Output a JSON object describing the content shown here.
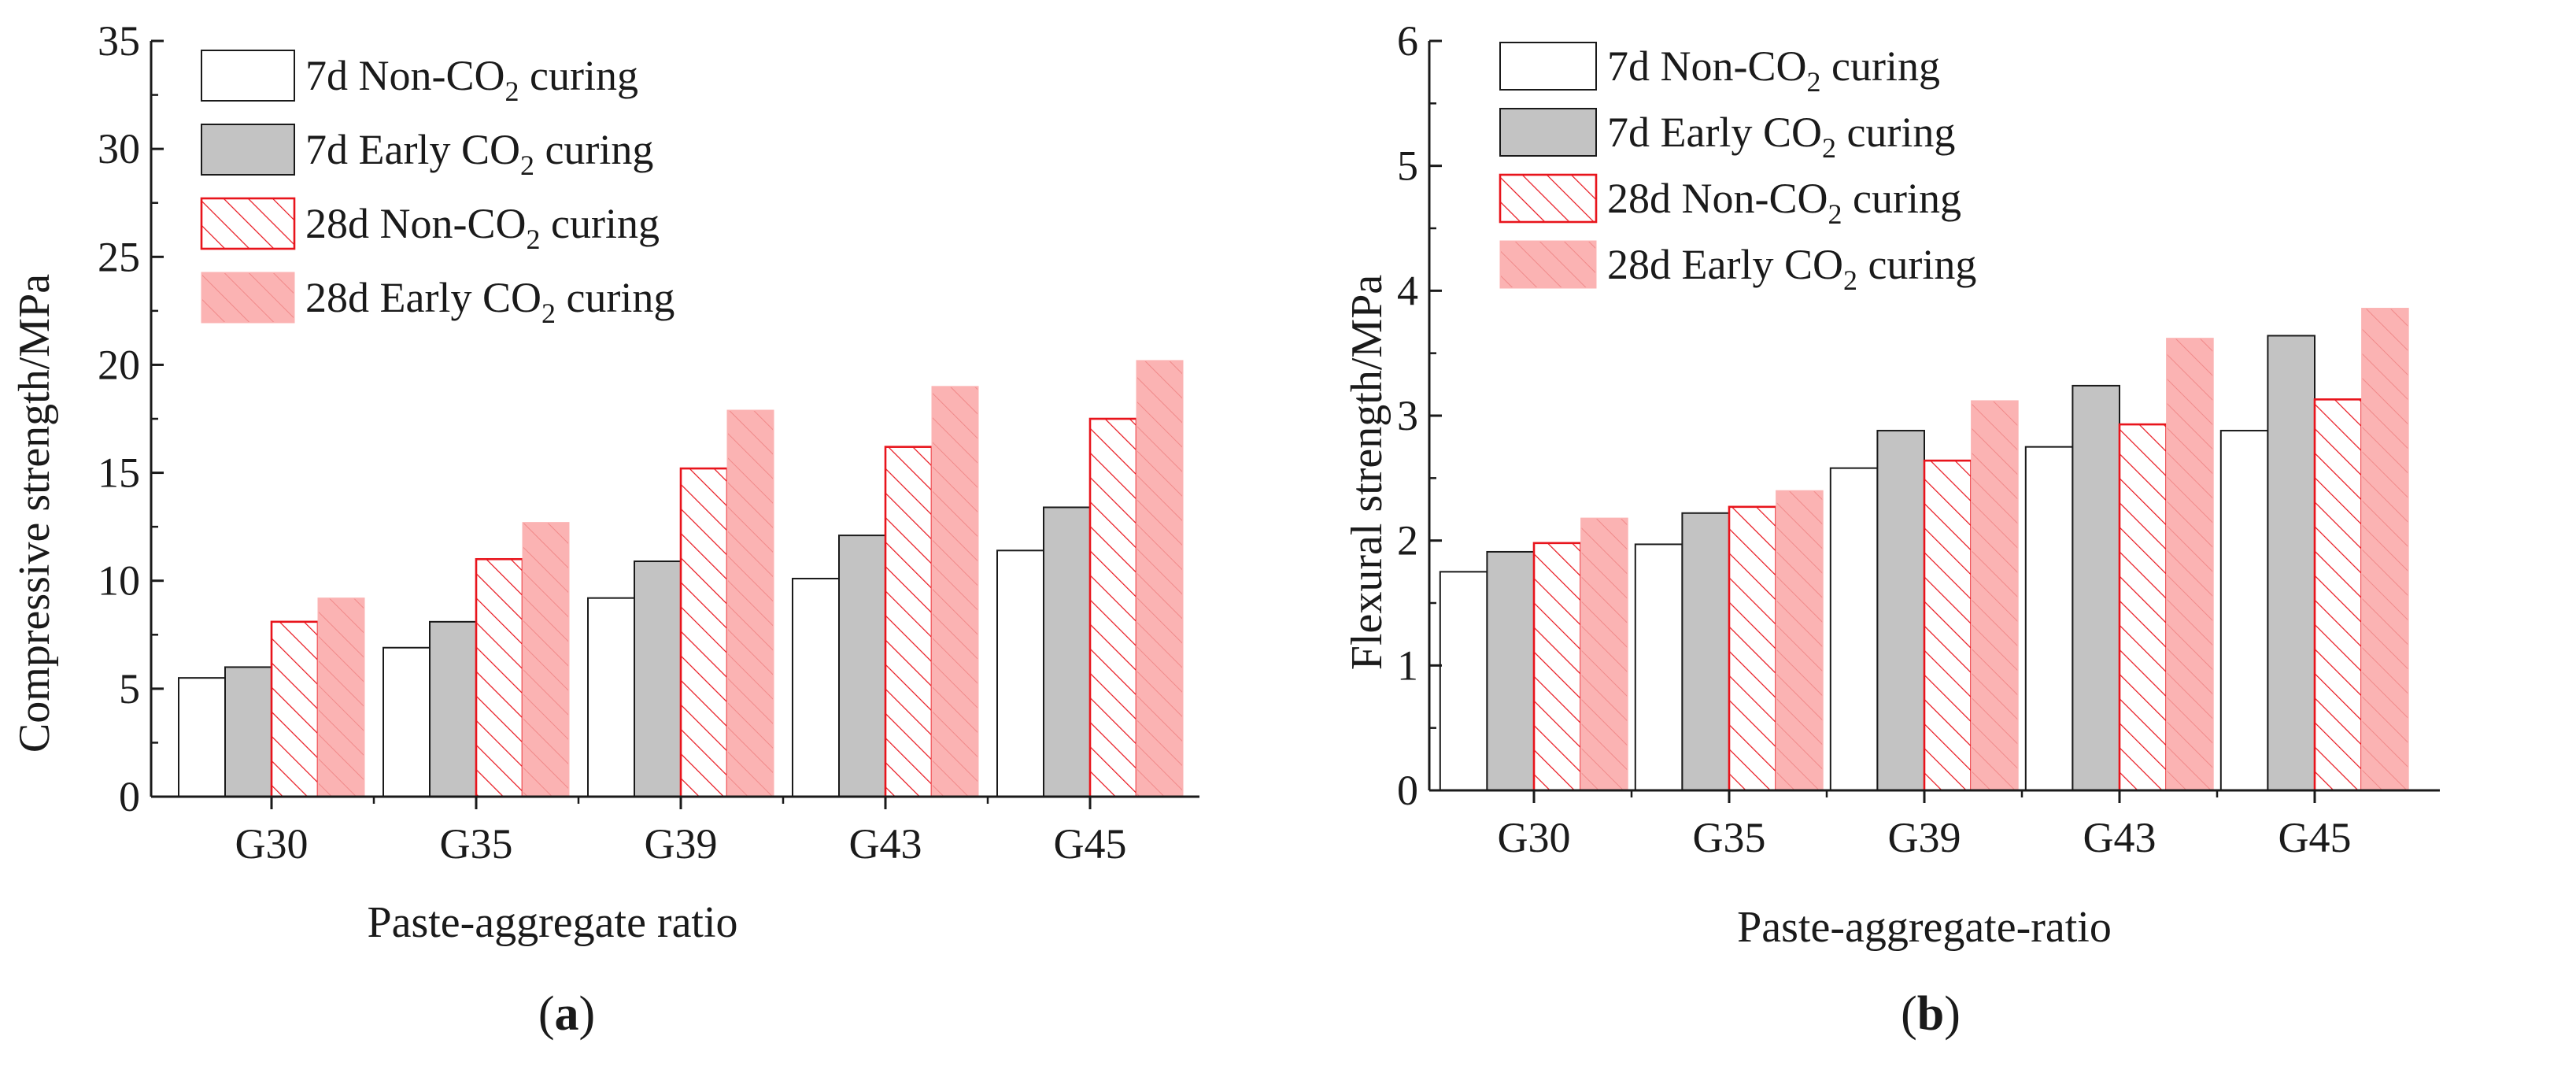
{
  "legend_entries": [
    {
      "prefix": "7d Non-CO",
      "sub": "2",
      "suffix": " curing"
    },
    {
      "prefix": "7d Early CO",
      "sub": "2",
      "suffix": " curing"
    },
    {
      "prefix": "28d Non-CO",
      "sub": "2",
      "suffix": " curing"
    },
    {
      "prefix": "28d Early CO",
      "sub": "2",
      "suffix": " curing"
    }
  ],
  "styles": {
    "white_fill": "#ffffff",
    "gray_fill": "#c3c3c3",
    "red": "#e8141c",
    "pink_fill": "#fbb3b3",
    "axis": "#1a1a1a"
  },
  "chart_data": [
    {
      "type": "bar",
      "panel": "a",
      "panel_label": {
        "open": "(",
        "letter": "a",
        "close": ")"
      },
      "title": "",
      "xlabel": "Paste-aggregate ratio",
      "ylabel": "Compressive strength/MPa",
      "ylim": [
        0,
        35
      ],
      "yticks": [
        0,
        5,
        10,
        15,
        20,
        25,
        30,
        35
      ],
      "categories": [
        "G30",
        "G35",
        "G39",
        "G43",
        "G45"
      ],
      "series": [
        {
          "name": "7d Non-CO2 curing",
          "values": [
            5.5,
            6.9,
            9.2,
            10.1,
            11.4
          ]
        },
        {
          "name": "7d Early CO2 curing",
          "values": [
            6.0,
            8.1,
            10.9,
            12.1,
            13.4
          ]
        },
        {
          "name": "28d Non-CO2 curing",
          "values": [
            8.1,
            11.0,
            15.2,
            16.2,
            17.5
          ]
        },
        {
          "name": "28d Early CO2 curing",
          "values": [
            9.2,
            12.7,
            17.9,
            19.0,
            20.2
          ]
        }
      ]
    },
    {
      "type": "bar",
      "panel": "b",
      "panel_label": {
        "open": "(",
        "letter": "b",
        "close": ")"
      },
      "title": "",
      "xlabel": "Paste-aggregate-ratio",
      "ylabel": "Flexural strength/MPa",
      "ylim": [
        0,
        6
      ],
      "yticks": [
        0,
        1,
        2,
        3,
        4,
        5,
        6
      ],
      "categories": [
        "G30",
        "G35",
        "G39",
        "G43",
        "G45"
      ],
      "series": [
        {
          "name": "7d Non-CO2 curing",
          "values": [
            1.75,
            1.97,
            2.58,
            2.75,
            2.88
          ]
        },
        {
          "name": "7d Early CO2 curing",
          "values": [
            1.91,
            2.22,
            2.88,
            3.24,
            3.64
          ]
        },
        {
          "name": "28d Non-CO2 curing",
          "values": [
            1.98,
            2.27,
            2.64,
            2.93,
            3.13
          ]
        },
        {
          "name": "28d Early CO2 curing",
          "values": [
            2.18,
            2.4,
            3.12,
            3.62,
            3.86
          ]
        }
      ]
    }
  ]
}
